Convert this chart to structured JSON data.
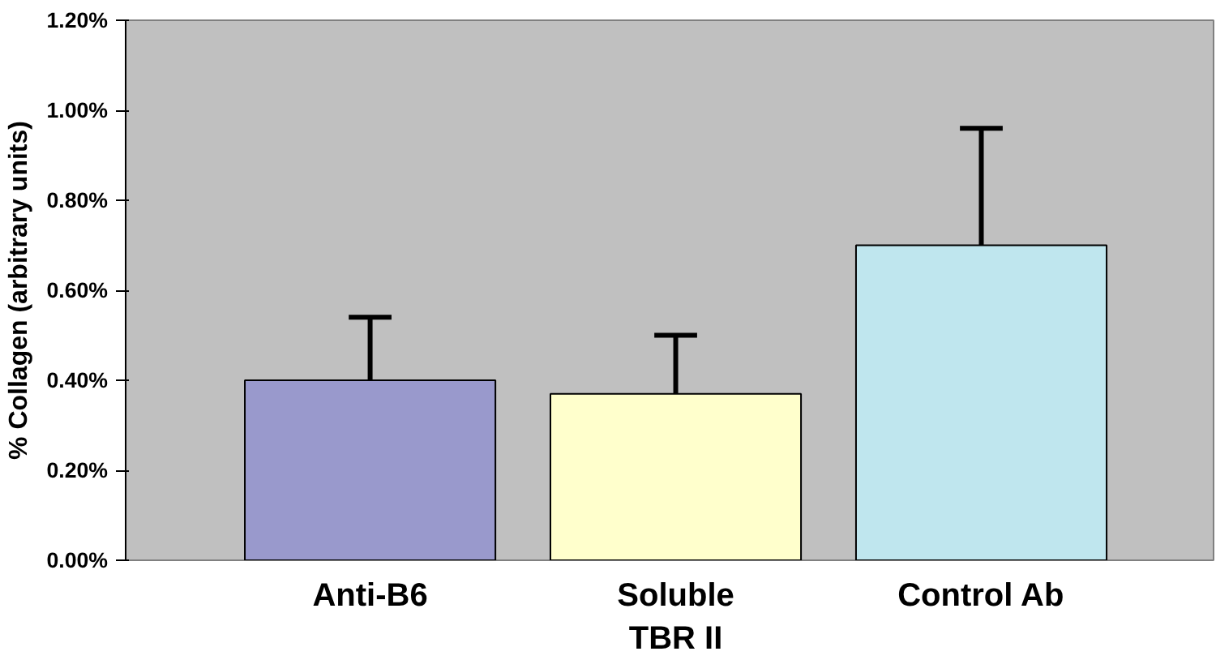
{
  "chart_data": {
    "type": "bar",
    "ylabel": "% Collagen (arbitrary units)",
    "categories": [
      "Anti-B6",
      "Soluble TBR II",
      "Control Ab"
    ],
    "values": [
      0.4,
      0.37,
      0.7
    ],
    "colors": [
      "#9999cc",
      "#ffffcc",
      "#bfe6ee"
    ],
    "errors": [
      [
        0.4,
        0.54
      ],
      [
        0.37,
        0.5
      ],
      [
        0.7,
        0.96
      ]
    ],
    "ylim": [
      0,
      1.2
    ],
    "yticks": [
      {
        "value": 0,
        "label": "0.00%"
      },
      {
        "value": 0.2,
        "label": "0.20%"
      },
      {
        "value": 0.4,
        "label": "0.40%"
      },
      {
        "value": 0.6,
        "label": "0.60%"
      },
      {
        "value": 0.8,
        "label": "0.80%"
      },
      {
        "value": 1.0,
        "label": "1.00%"
      },
      {
        "value": 1.2,
        "label": "1.20%"
      }
    ],
    "grid": false
  }
}
